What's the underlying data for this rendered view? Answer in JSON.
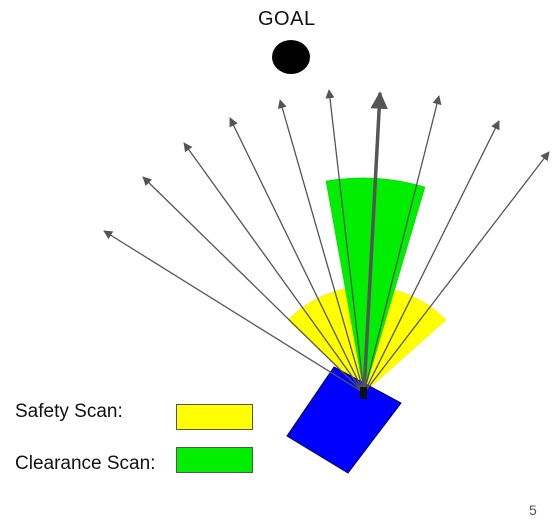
{
  "goal": {
    "label": "GOAL"
  },
  "legend": {
    "safety_label": "Safety Scan:",
    "clearance_label": "Clearance Scan:"
  },
  "page_number": "5",
  "colors": {
    "goal": "#000000",
    "robot": "#0000ff",
    "safety_scan": "#ffff00",
    "clearance_scan": "#00ee00",
    "rays": "#555555",
    "chosen_direction": "#555555"
  },
  "icons": {
    "goal": "filled-circle",
    "robot": "rotated-rectangle",
    "rays": "arrow"
  }
}
